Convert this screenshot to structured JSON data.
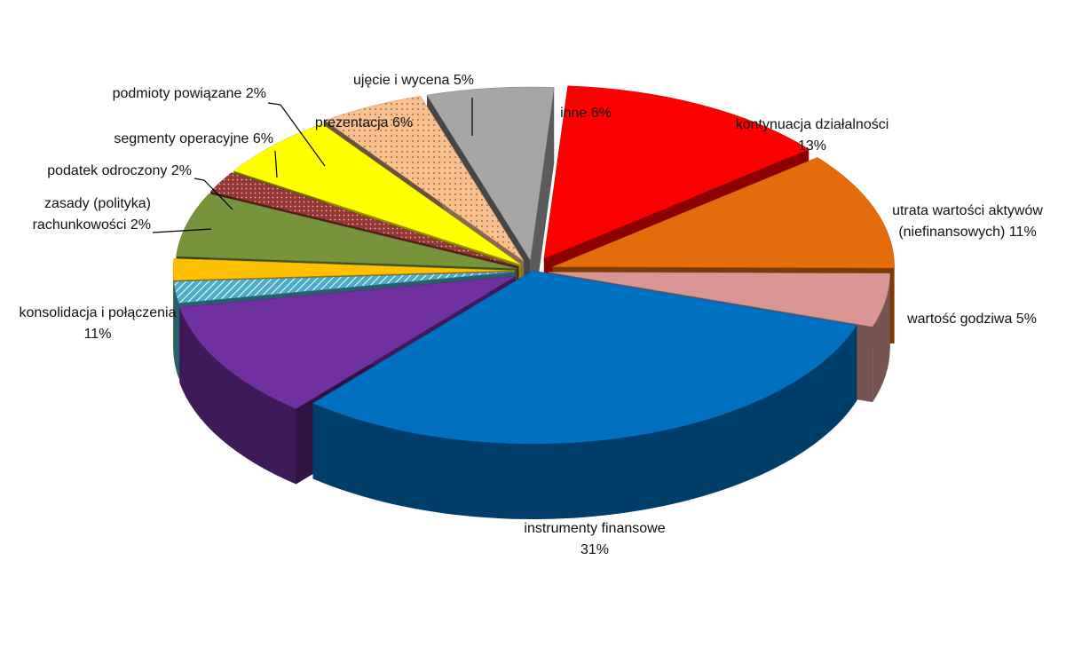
{
  "chart_data": {
    "type": "pie",
    "title": "",
    "legend": "none",
    "slices": [
      {
        "label": "kontynuacja działalności",
        "value": 13,
        "pct_text": "13%",
        "color": "#ff0000",
        "pattern": "none"
      },
      {
        "label": "utrata wartości aktywów (niefinansowych)",
        "value": 11,
        "pct_text": "11%",
        "color": "#e46c0a",
        "pattern": "none"
      },
      {
        "label": "wartość godziwa",
        "value": 5,
        "pct_text": "5%",
        "color": "#d99694",
        "pattern": "none"
      },
      {
        "label": "instrumenty finansowe",
        "value": 31,
        "pct_text": "31%",
        "color": "#0070c0",
        "pattern": "none"
      },
      {
        "label": "konsolidacja i połączenia",
        "value": 11,
        "pct_text": "11%",
        "color": "#7030a0",
        "pattern": "none"
      },
      {
        "label": "zasady (polityka) rachunkowości",
        "value": 2,
        "pct_text": "2%",
        "color": "#4bacc6",
        "pattern": "stripes"
      },
      {
        "label": "podatek odroczony",
        "value": 2,
        "pct_text": "2%",
        "color": "#ffc000",
        "pattern": "none"
      },
      {
        "label": "segmenty operacyjne",
        "value": 6,
        "pct_text": "6%",
        "color": "#77933c",
        "pattern": "none"
      },
      {
        "label": "podmioty powiązane",
        "value": 2,
        "pct_text": "2%",
        "color": "#953735",
        "pattern": "dots"
      },
      {
        "label": "prezentacja",
        "value": 6,
        "pct_text": "6%",
        "color": "#ffff00",
        "pattern": "none"
      },
      {
        "label": "ujęcie i wycena",
        "value": 5,
        "pct_text": "5%",
        "color": "#fac090",
        "pattern": "dots"
      },
      {
        "label": "inne",
        "value": 6,
        "pct_text": "6%",
        "color": "#a6a6a6",
        "pattern": "none"
      }
    ],
    "label_text": [
      [
        "kontynuacja działalności",
        "13%"
      ],
      [
        "utrata wartości aktywów",
        "(niefinansowych) 11%"
      ],
      [
        "wartość godziwa 5%"
      ],
      [
        "instrumenty finansowe",
        "31%"
      ],
      [
        "konsolidacja i połączenia",
        "11%"
      ],
      [
        "zasady (polityka)",
        "rachunkowości 2%"
      ],
      [
        "podatek odroczony 2%"
      ],
      [
        "segmenty operacyjne 6%"
      ],
      [
        "podmioty powiązane 2%"
      ],
      [
        "prezentacja 6%"
      ],
      [
        "ujęcie i wycena 5%"
      ],
      [
        "inne 6%"
      ]
    ]
  }
}
